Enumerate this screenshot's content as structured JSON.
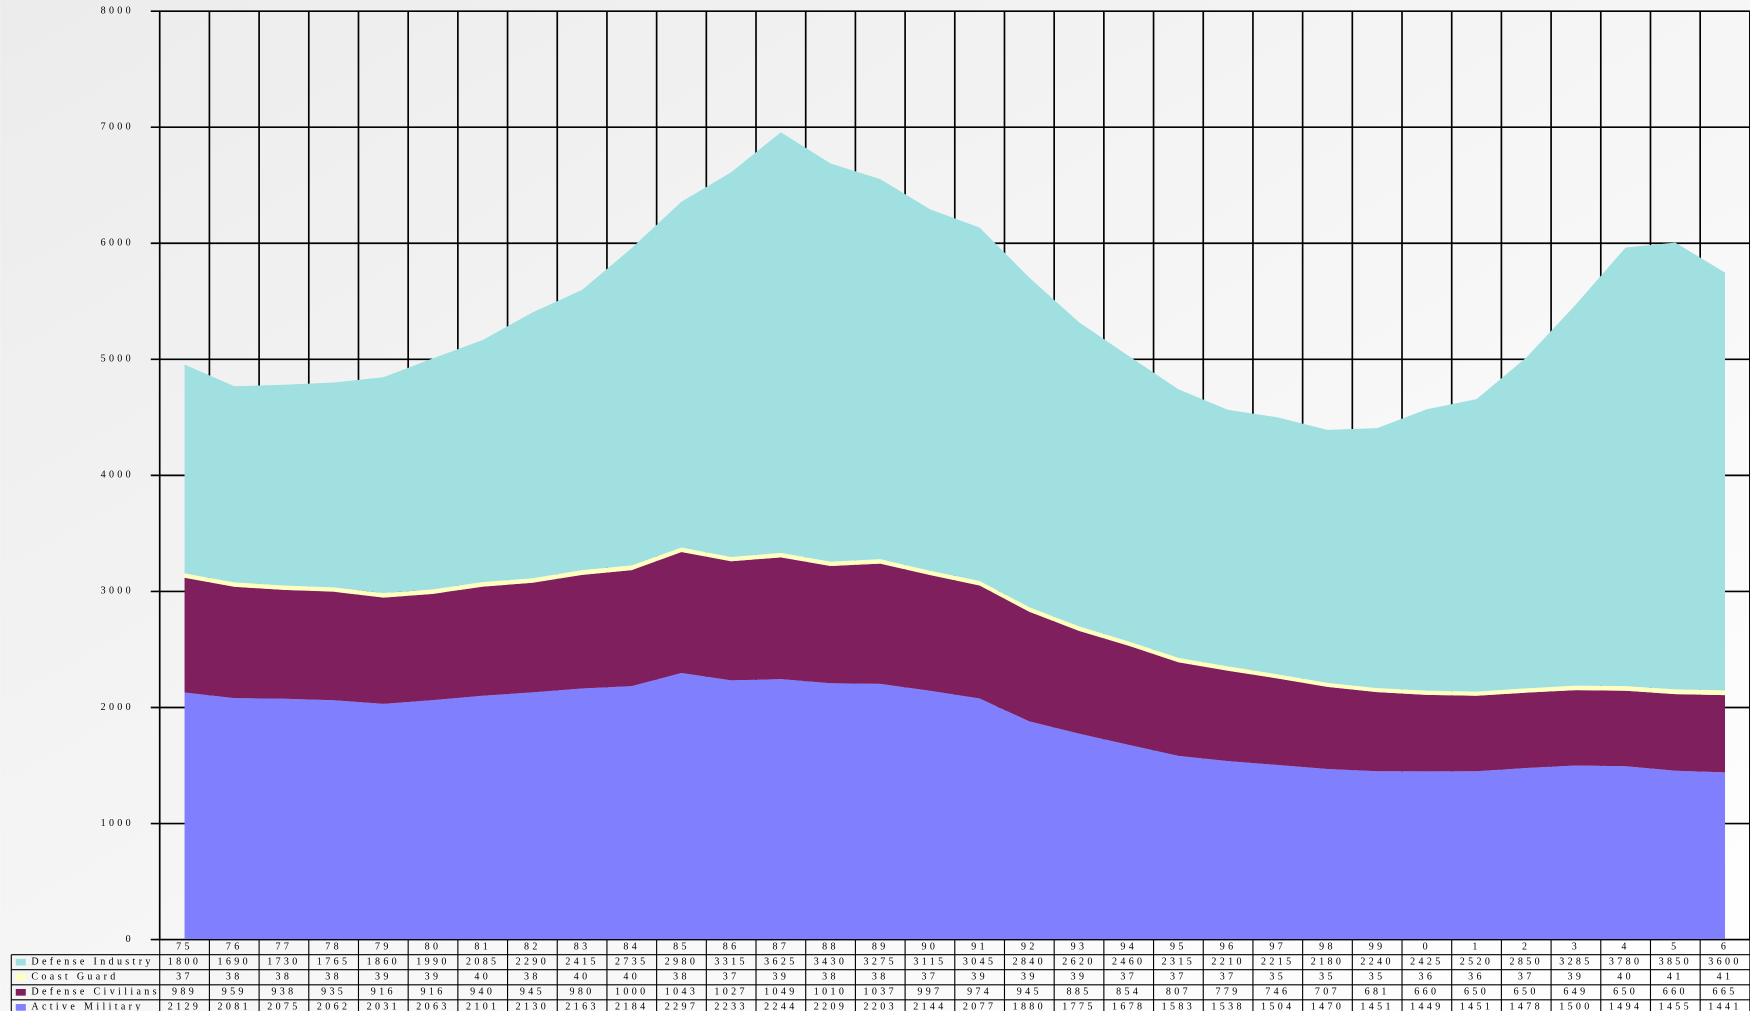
{
  "chart_data": {
    "type": "stacked_area",
    "categories": [
      "75",
      "76",
      "77",
      "78",
      "79",
      "80",
      "81",
      "82",
      "83",
      "84",
      "85",
      "86",
      "87",
      "88",
      "89",
      "90",
      "91",
      "92",
      "93",
      "94",
      "95",
      "96",
      "97",
      "98",
      "99",
      "0",
      "1",
      "2",
      "3",
      "4",
      "5",
      "6"
    ],
    "series": [
      {
        "name": "Defense Industry",
        "color": "#a0e0e0",
        "values": [
          1800,
          1690,
          1730,
          1765,
          1860,
          1990,
          2085,
          2290,
          2415,
          2735,
          2980,
          3315,
          3625,
          3430,
          3275,
          3115,
          3045,
          2840,
          2620,
          2460,
          2315,
          2210,
          2215,
          2180,
          2240,
          2425,
          2520,
          2850,
          3285,
          3780,
          3850,
          3600
        ]
      },
      {
        "name": "Coast Guard",
        "color": "#ffffc0",
        "values": [
          37,
          38,
          38,
          38,
          39,
          39,
          40,
          38,
          40,
          40,
          38,
          37,
          39,
          38,
          38,
          37,
          39,
          39,
          39,
          37,
          37,
          37,
          35,
          35,
          35,
          36,
          36,
          37,
          39,
          40,
          41,
          41
        ]
      },
      {
        "name": "Defense Civilians",
        "color": "#801f5e",
        "values": [
          989,
          959,
          938,
          935,
          916,
          916,
          940,
          945,
          980,
          1000,
          1043,
          1027,
          1049,
          1010,
          1037,
          997,
          974,
          945,
          885,
          854,
          807,
          779,
          746,
          707,
          681,
          660,
          650,
          650,
          649,
          650,
          660,
          665
        ]
      },
      {
        "name": "Active Military",
        "color": "#8080ff",
        "values": [
          2129,
          2081,
          2075,
          2062,
          2031,
          2063,
          2101,
          2130,
          2163,
          2184,
          2297,
          2233,
          2244,
          2209,
          2203,
          2144,
          2077,
          1880,
          1775,
          1678,
          1583,
          1538,
          1504,
          1470,
          1451,
          1449,
          1451,
          1478,
          1500,
          1494,
          1455,
          1441
        ]
      }
    ],
    "ylim": [
      0,
      8000
    ],
    "yticks": [
      0,
      1000,
      2000,
      3000,
      4000,
      5000,
      6000,
      7000,
      8000
    ],
    "grid": true
  }
}
